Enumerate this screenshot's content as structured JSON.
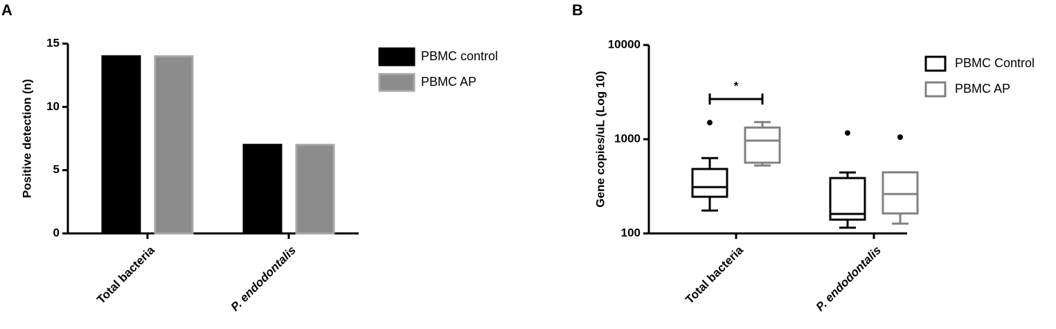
{
  "chart_data": [
    {
      "type": "bar",
      "panel_label": "A",
      "ylabel": "Positive detection (n)",
      "categories": [
        "Total bacteria",
        "P. endodontalis"
      ],
      "series": [
        {
          "name": "PBMC control",
          "color": "#000000",
          "values": [
            14,
            7
          ]
        },
        {
          "name": "PBMC AP",
          "color": "#8c8c8c",
          "values": [
            14,
            7
          ]
        }
      ],
      "ylim": [
        0,
        15
      ],
      "yticks": [
        0,
        5,
        10,
        15
      ],
      "legend": "right"
    },
    {
      "type": "box",
      "panel_label": "B",
      "ylabel": "Gene copies/uL (Log 10)",
      "categories": [
        "Total bacteria",
        "P. endodontalis"
      ],
      "series": [
        {
          "name": "PBMC Control",
          "color": "#000000",
          "values": [
            {
              "min": 175,
              "q1": 245,
              "median": 310,
              "q3": 483,
              "max": 631,
              "outliers": [
                1500
              ]
            },
            {
              "min": 115,
              "q1": 140,
              "median": 161,
              "q3": 387,
              "max": 444,
              "outliers": [
                1165
              ]
            }
          ]
        },
        {
          "name": "PBMC AP",
          "color": "#808080",
          "values": [
            {
              "min": 525,
              "q1": 563,
              "median": 966,
              "q3": 1330,
              "max": 1520,
              "outliers": []
            },
            {
              "min": 127,
              "q1": 163,
              "median": 262,
              "q3": 445,
              "max": 445,
              "outliers": [
                1052
              ]
            }
          ]
        }
      ],
      "significance": "*",
      "log_scale": true,
      "ylim": [
        100,
        10000
      ],
      "yticks": [
        100,
        1000,
        10000
      ],
      "legend": "right"
    }
  ]
}
